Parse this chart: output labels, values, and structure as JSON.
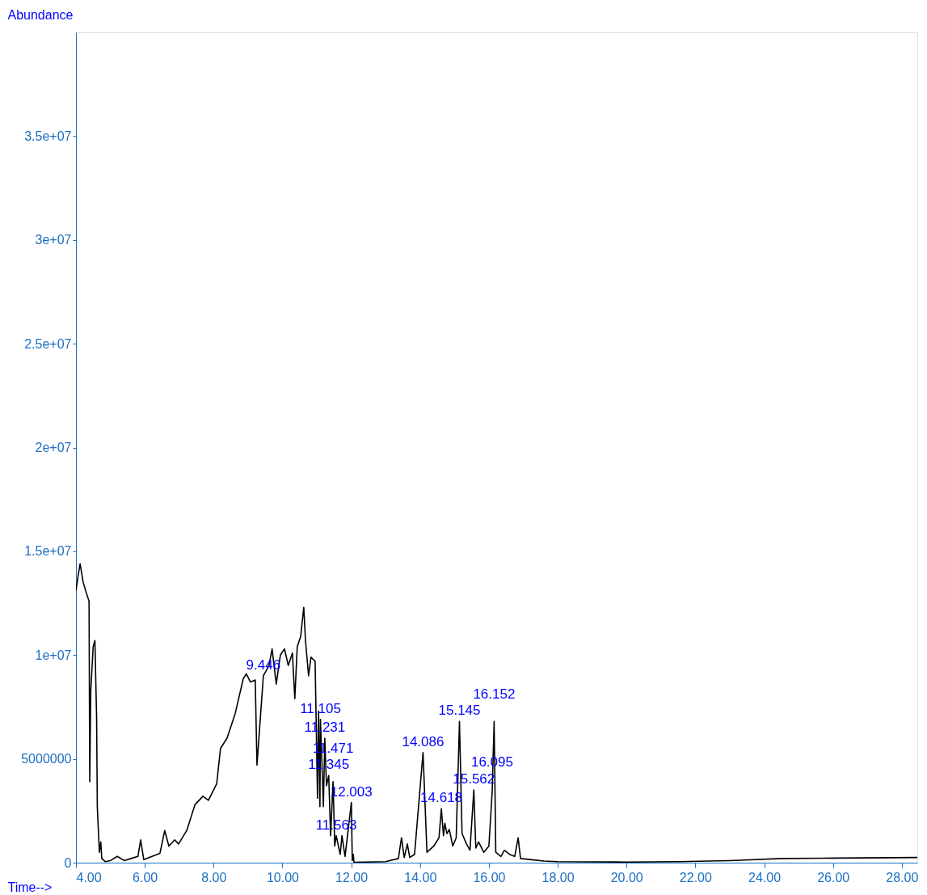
{
  "chart_data": {
    "type": "line",
    "xlabel": "Time-->",
    "ylabel": "Abundance",
    "xlim": [
      4,
      28.45
    ],
    "ylim": [
      0,
      40000000
    ],
    "xticks": [
      {
        "value": 4,
        "label": "4.00"
      },
      {
        "value": 6,
        "label": "6.00"
      },
      {
        "value": 8,
        "label": "8.00"
      },
      {
        "value": 10,
        "label": "10.00"
      },
      {
        "value": 12,
        "label": "12.00"
      },
      {
        "value": 14,
        "label": "14.00"
      },
      {
        "value": 16,
        "label": "16.00"
      },
      {
        "value": 18,
        "label": "18.00"
      },
      {
        "value": 20,
        "label": "20.00"
      },
      {
        "value": 22,
        "label": "22.00"
      },
      {
        "value": 24,
        "label": "24.00"
      },
      {
        "value": 26,
        "label": "26.00"
      },
      {
        "value": 28,
        "label": "28.00"
      }
    ],
    "yticks": [
      0,
      5000000,
      {
        "value": 10000000,
        "label": "1e+07"
      },
      {
        "value": 15000000,
        "label": "1.5e+07"
      },
      {
        "value": 20000000,
        "label": "2e+07"
      },
      {
        "value": 25000000,
        "label": "2.5e+07"
      },
      {
        "value": 30000000,
        "label": "3e+07"
      },
      {
        "value": 35000000,
        "label": "3.5e+07"
      }
    ],
    "grid": false,
    "marker": "none",
    "line_style": "solid",
    "series": [
      {
        "color": "#000000",
        "x": [
          4.0,
          4.07,
          4.12,
          4.21,
          4.3,
          4.38,
          4.4,
          4.43,
          4.5,
          4.55,
          4.6,
          4.62,
          4.68,
          4.72,
          4.75,
          4.85,
          5.0,
          5.2,
          5.4,
          5.6,
          5.8,
          5.88,
          5.97,
          6.44,
          6.58,
          6.7,
          6.87,
          6.98,
          7.22,
          7.46,
          7.69,
          7.85,
          8.09,
          8.2,
          8.39,
          8.63,
          8.86,
          8.95,
          9.07,
          9.21,
          9.26,
          9.446,
          9.61,
          9.7,
          9.82,
          9.94,
          10.06,
          10.17,
          10.29,
          10.36,
          10.43,
          10.53,
          10.62,
          10.67,
          10.76,
          10.83,
          10.95,
          11.0,
          11.02,
          11.05,
          11.09,
          11.105,
          11.19,
          11.231,
          11.28,
          11.345,
          11.4,
          11.471,
          11.52,
          11.563,
          11.68,
          11.73,
          11.82,
          12.003,
          12.03,
          12.06,
          12.08,
          13.0,
          13.37,
          13.46,
          13.54,
          13.63,
          13.7,
          13.84,
          14.086,
          14.2,
          14.4,
          14.55,
          14.618,
          14.68,
          14.72,
          14.78,
          14.85,
          14.95,
          15.05,
          15.145,
          15.22,
          15.35,
          15.45,
          15.562,
          15.62,
          15.7,
          15.85,
          16.0,
          16.095,
          16.152,
          16.2,
          16.35,
          16.45,
          16.6,
          16.75,
          16.85,
          16.92,
          17.2,
          17.6,
          18.0,
          20.0,
          21.5,
          23.0,
          24.5,
          26.0,
          28.45
        ],
        "values": [
          13100000,
          13900000,
          14400000,
          13500000,
          13000000,
          12600000,
          3900000,
          8300000,
          10400000,
          10700000,
          7000000,
          2700000,
          500000,
          1000000,
          200000,
          50000,
          100000,
          300000,
          100000,
          200000,
          300000,
          1100000,
          150000,
          450000,
          1550000,
          800000,
          1100000,
          900000,
          1550000,
          2800000,
          3200000,
          3000000,
          3800000,
          5500000,
          6000000,
          7200000,
          8850000,
          9100000,
          8700000,
          8800000,
          4700000,
          9000000,
          9500000,
          10300000,
          8600000,
          10000000,
          10300000,
          9500000,
          10100000,
          7900000,
          10400000,
          10900000,
          12300000,
          10700000,
          9000000,
          9900000,
          9700000,
          4900000,
          3100000,
          7300000,
          2700000,
          6900000,
          2700000,
          6000000,
          3700000,
          4200000,
          1300000,
          3900000,
          800000,
          1300000,
          400000,
          1300000,
          300000,
          2900000,
          100000,
          400000,
          20000,
          50000,
          200000,
          1200000,
          250000,
          900000,
          250000,
          400000,
          5300000,
          500000,
          800000,
          1200000,
          2600000,
          1300000,
          1900000,
          1400000,
          1600000,
          800000,
          1200000,
          6800000,
          1400000,
          900000,
          600000,
          3500000,
          700000,
          1000000,
          500000,
          800000,
          3400000,
          6800000,
          500000,
          300000,
          600000,
          400000,
          300000,
          1200000,
          200000,
          150000,
          80000,
          50000,
          30000,
          50000,
          100000,
          200000,
          220000,
          250000
        ]
      }
    ],
    "annotations": [
      {
        "text": "9.446",
        "x": 9.446,
        "y": 9000000
      },
      {
        "text": "11.105",
        "x": 11.105,
        "y": 6900000
      },
      {
        "text": "11.231",
        "x": 11.231,
        "y": 6000000
      },
      {
        "text": "11.345",
        "x": 11.345,
        "y": 4200000
      },
      {
        "text": "11.471",
        "x": 11.471,
        "y": 3900000
      },
      {
        "text": "11.563",
        "x": 11.563,
        "y": 1300000
      },
      {
        "text": "12.003",
        "x": 12.003,
        "y": 2900000
      },
      {
        "text": "14.086",
        "x": 14.086,
        "y": 5300000
      },
      {
        "text": "14.618",
        "x": 14.618,
        "y": 2600000
      },
      {
        "text": "15.145",
        "x": 15.145,
        "y": 6800000
      },
      {
        "text": "15.562",
        "x": 15.562,
        "y": 3500000
      },
      {
        "text": "16.152",
        "x": 16.152,
        "y": 6800000
      },
      {
        "text": "16.095",
        "x": 16.095,
        "y": 3400000
      }
    ]
  }
}
